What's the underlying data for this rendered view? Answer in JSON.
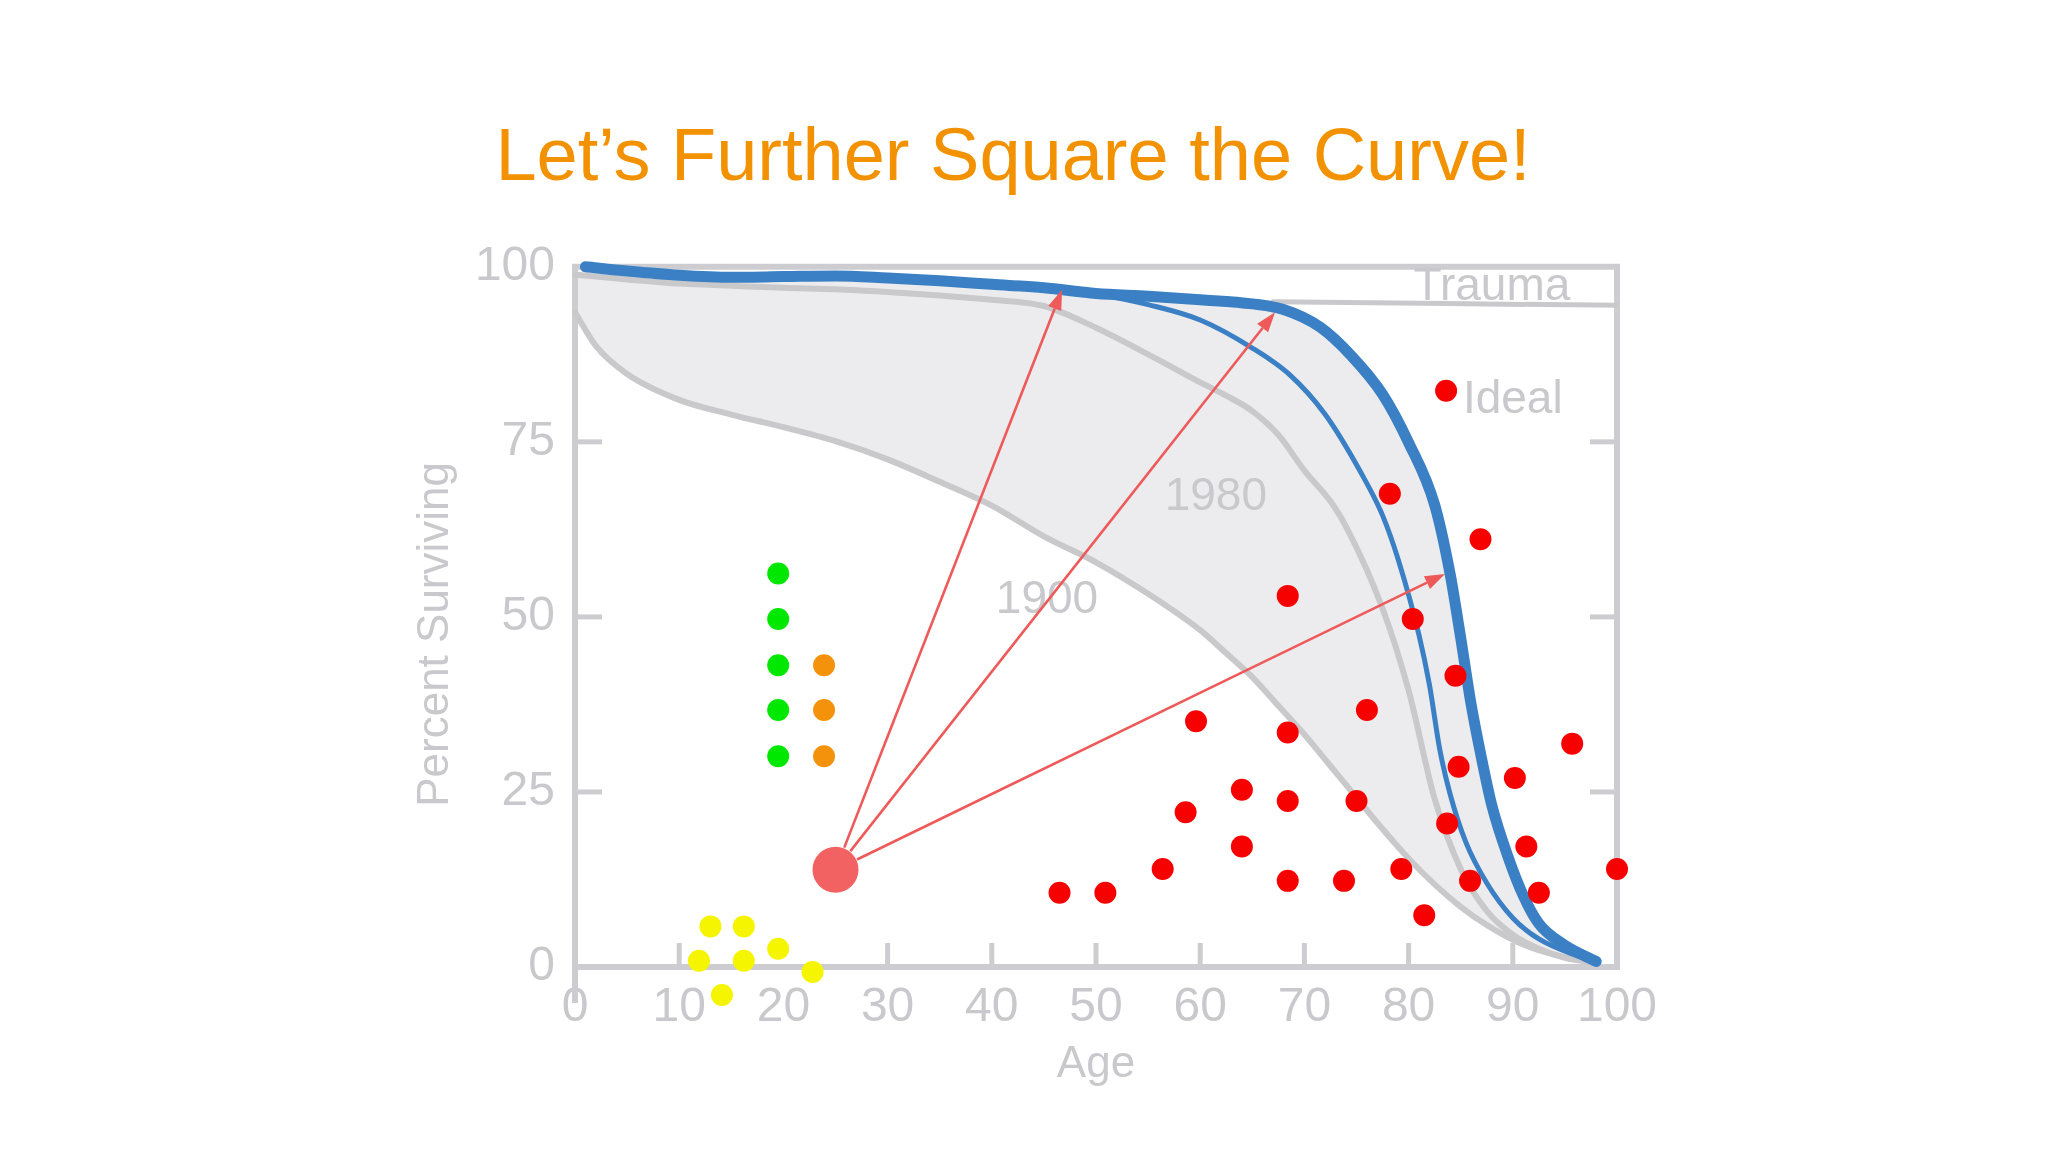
{
  "chart_data": {
    "type": "scatter",
    "title": "Let’s Further Square the Curve!",
    "xlabel": "Age",
    "ylabel": "Percent Surviving",
    "xlim": [
      0,
      100
    ],
    "xticks": [
      0,
      10,
      20,
      30,
      40,
      50,
      60,
      70,
      80,
      90,
      100
    ],
    "ylim": [
      -5,
      100
    ],
    "yticks": [
      0,
      25,
      50,
      75,
      100
    ],
    "legend": false,
    "marker": "circle",
    "line_style": "solid",
    "annotations": [
      "Trauma",
      "Ideal",
      "1980",
      "1900"
    ],
    "series": [
      {
        "type": "line",
        "color": "#c9c9cc",
        "marker": "none",
        "x": [
          0,
          2,
          5,
          10,
          15,
          20,
          25,
          30,
          35,
          40,
          45,
          50,
          55,
          60,
          62.5,
          65,
          67.5,
          70,
          72.5,
          74,
          77.5,
          80,
          82.5,
          85,
          87.5,
          90,
          92.5,
          95,
          98
        ],
        "values": [
          93.5,
          88.7,
          84.7,
          81.0,
          78.9,
          77.1,
          75.1,
          72.5,
          69.3,
          65.9,
          61.5,
          57.8,
          53.3,
          48.1,
          44.8,
          41.4,
          37.3,
          33.2,
          28.7,
          26.0,
          19.7,
          15.5,
          11.8,
          8.6,
          6.0,
          3.9,
          2.4,
          1.4,
          0.6
        ]
      },
      {
        "type": "line",
        "color": "#c9c9cc",
        "marker": "none",
        "x": [
          0,
          2,
          5,
          10,
          15,
          20,
          25,
          30,
          35,
          40,
          45,
          50,
          55,
          60,
          62.5,
          65,
          67.5,
          70,
          72.5,
          74,
          77.5,
          80,
          82.5,
          85,
          87.5,
          90,
          92.5,
          95,
          98
        ],
        "values": [
          98.9,
          98.6,
          98.2,
          97.6,
          97.3,
          97.0,
          96.8,
          96.4,
          95.9,
          95.3,
          94.4,
          91.3,
          87.5,
          83.5,
          81.6,
          79.4,
          76.0,
          70.9,
          66.5,
          62.9,
          51.2,
          39.5,
          24.0,
          14.0,
          8.0,
          4.6,
          2.6,
          1.3,
          0.6
        ],
        "lower": [
          93.5,
          88.7,
          84.7,
          81.0,
          78.9,
          77.1,
          75.1,
          72.5,
          69.3,
          65.9,
          61.5,
          57.8,
          53.3,
          48.1,
          44.8,
          41.4,
          37.3,
          33.2,
          28.7,
          26.0,
          19.7,
          15.5,
          11.8,
          8.6,
          6.0,
          3.9,
          2.4,
          1.4,
          0.6
        ],
        "upper": [
          98.9,
          98.6,
          98.2,
          97.6,
          97.3,
          97.0,
          96.8,
          96.4,
          95.9,
          95.3,
          94.4,
          91.3,
          87.5,
          83.5,
          81.6,
          79.4,
          76.0,
          70.9,
          66.5,
          62.9,
          51.2,
          39.5,
          24.0,
          14.0,
          8.0,
          4.6,
          2.6,
          1.3,
          0.6
        ]
      },
      {
        "type": "line",
        "color": "#c9c9cc",
        "marker": "none",
        "x": [
          67,
          100
        ],
        "values": [
          95.0,
          94.5
        ]
      },
      {
        "type": "line",
        "color": "#3b80c4",
        "marker": "none",
        "x": [
          50,
          55,
          60,
          65,
          68.5,
          72,
          75.5,
          77.5,
          79,
          81,
          82,
          83,
          84,
          85.5,
          87.5,
          90,
          92.5,
          96,
          98
        ],
        "values": [
          96.2,
          94.6,
          92.4,
          88.4,
          84.7,
          78.9,
          70.4,
          64.5,
          58.2,
          47.4,
          40.3,
          31.0,
          24.6,
          17.8,
          12.0,
          7.0,
          4.0,
          1.7,
          0.8
        ]
      },
      {
        "type": "line",
        "color": "#3b80c4",
        "marker": "none",
        "x": [
          1,
          5,
          10,
          15,
          20,
          25,
          30,
          35,
          40,
          45,
          50,
          55,
          60,
          65,
          68,
          71.5,
          74.5,
          77.5,
          80,
          82.5,
          84,
          85,
          86,
          87,
          88,
          89.5,
          91,
          92.5,
          95,
          98
        ],
        "values": [
          100,
          99.4,
          98.8,
          98.5,
          98.6,
          98.7,
          98.4,
          98.0,
          97.5,
          97.0,
          96.2,
          95.8,
          95.3,
          94.7,
          93.9,
          91.4,
          87.3,
          81.8,
          74.9,
          66.0,
          56.0,
          47.0,
          37.5,
          29.8,
          23.0,
          15.9,
          10.2,
          6.2,
          3.1,
          0.8
        ],
        "lower": [
          98.8,
          98.2,
          97.6,
          97.3,
          97.0,
          96.8,
          96.4,
          95.9,
          95.3,
          94.4,
          91.3,
          87.5,
          83.5,
          79.3,
          75.0,
          68.3,
          61.7,
          51.2,
          39.5,
          24.0,
          18.0,
          14.0,
          11.6,
          9.2,
          7.3,
          5.3,
          3.8,
          2.6,
          1.3,
          0.6
        ],
        "upper": [
          100,
          99.4,
          98.8,
          98.5,
          98.6,
          98.7,
          98.4,
          98.0,
          97.5,
          97.0,
          96.2,
          95.8,
          95.3,
          94.7,
          93.9,
          91.4,
          87.3,
          81.8,
          74.9,
          66.0,
          56.0,
          47.0,
          37.5,
          29.8,
          23.0,
          15.9,
          10.2,
          6.2,
          3.1,
          0.8
        ]
      },
      {
        "color": "#f70000",
        "x": [
          83.6,
          78.2,
          86.9,
          68.4,
          80.4,
          84.5,
          76.0,
          59.6,
          68.4,
          95.7,
          84.8,
          90.2,
          64.0,
          68.4,
          75.0,
          58.6,
          83.7,
          64.0,
          91.3,
          56.4,
          79.3,
          100,
          68.4,
          73.8,
          85.9,
          46.5,
          50.9,
          92.5,
          81.5
        ],
        "values": [
          82.3,
          67.6,
          61.1,
          53.0,
          49.7,
          41.6,
          36.7,
          35.1,
          33.5,
          31.9,
          28.6,
          27.0,
          25.3,
          23.7,
          23.7,
          22.1,
          20.5,
          17.2,
          17.2,
          14.0,
          14.0,
          14.0,
          12.3,
          12.3,
          12.3,
          10.6,
          10.6,
          10.6,
          7.4
        ]
      },
      {
        "color": "#00e800",
        "x": [
          19.5,
          19.5,
          19.5,
          19.5,
          19.5
        ],
        "values": [
          56.2,
          49.7,
          43.1,
          36.7,
          30.1
        ]
      },
      {
        "color": "#f4920c",
        "x": [
          23.9,
          23.9,
          23.9
        ],
        "values": [
          43.1,
          36.7,
          30.1
        ]
      },
      {
        "color": "#f5f500",
        "x": [
          13.0,
          16.2,
          19.5,
          11.9,
          16.2,
          22.8,
          14.1
        ],
        "values": [
          5.8,
          5.8,
          2.6,
          0.9,
          0.9,
          -0.7,
          -4.0
        ]
      },
      {
        "type": "bubble",
        "color": "#f26262",
        "x": [
          25
        ],
        "values": [
          13.9
        ],
        "sizes": [
          1
        ]
      }
    ]
  }
}
